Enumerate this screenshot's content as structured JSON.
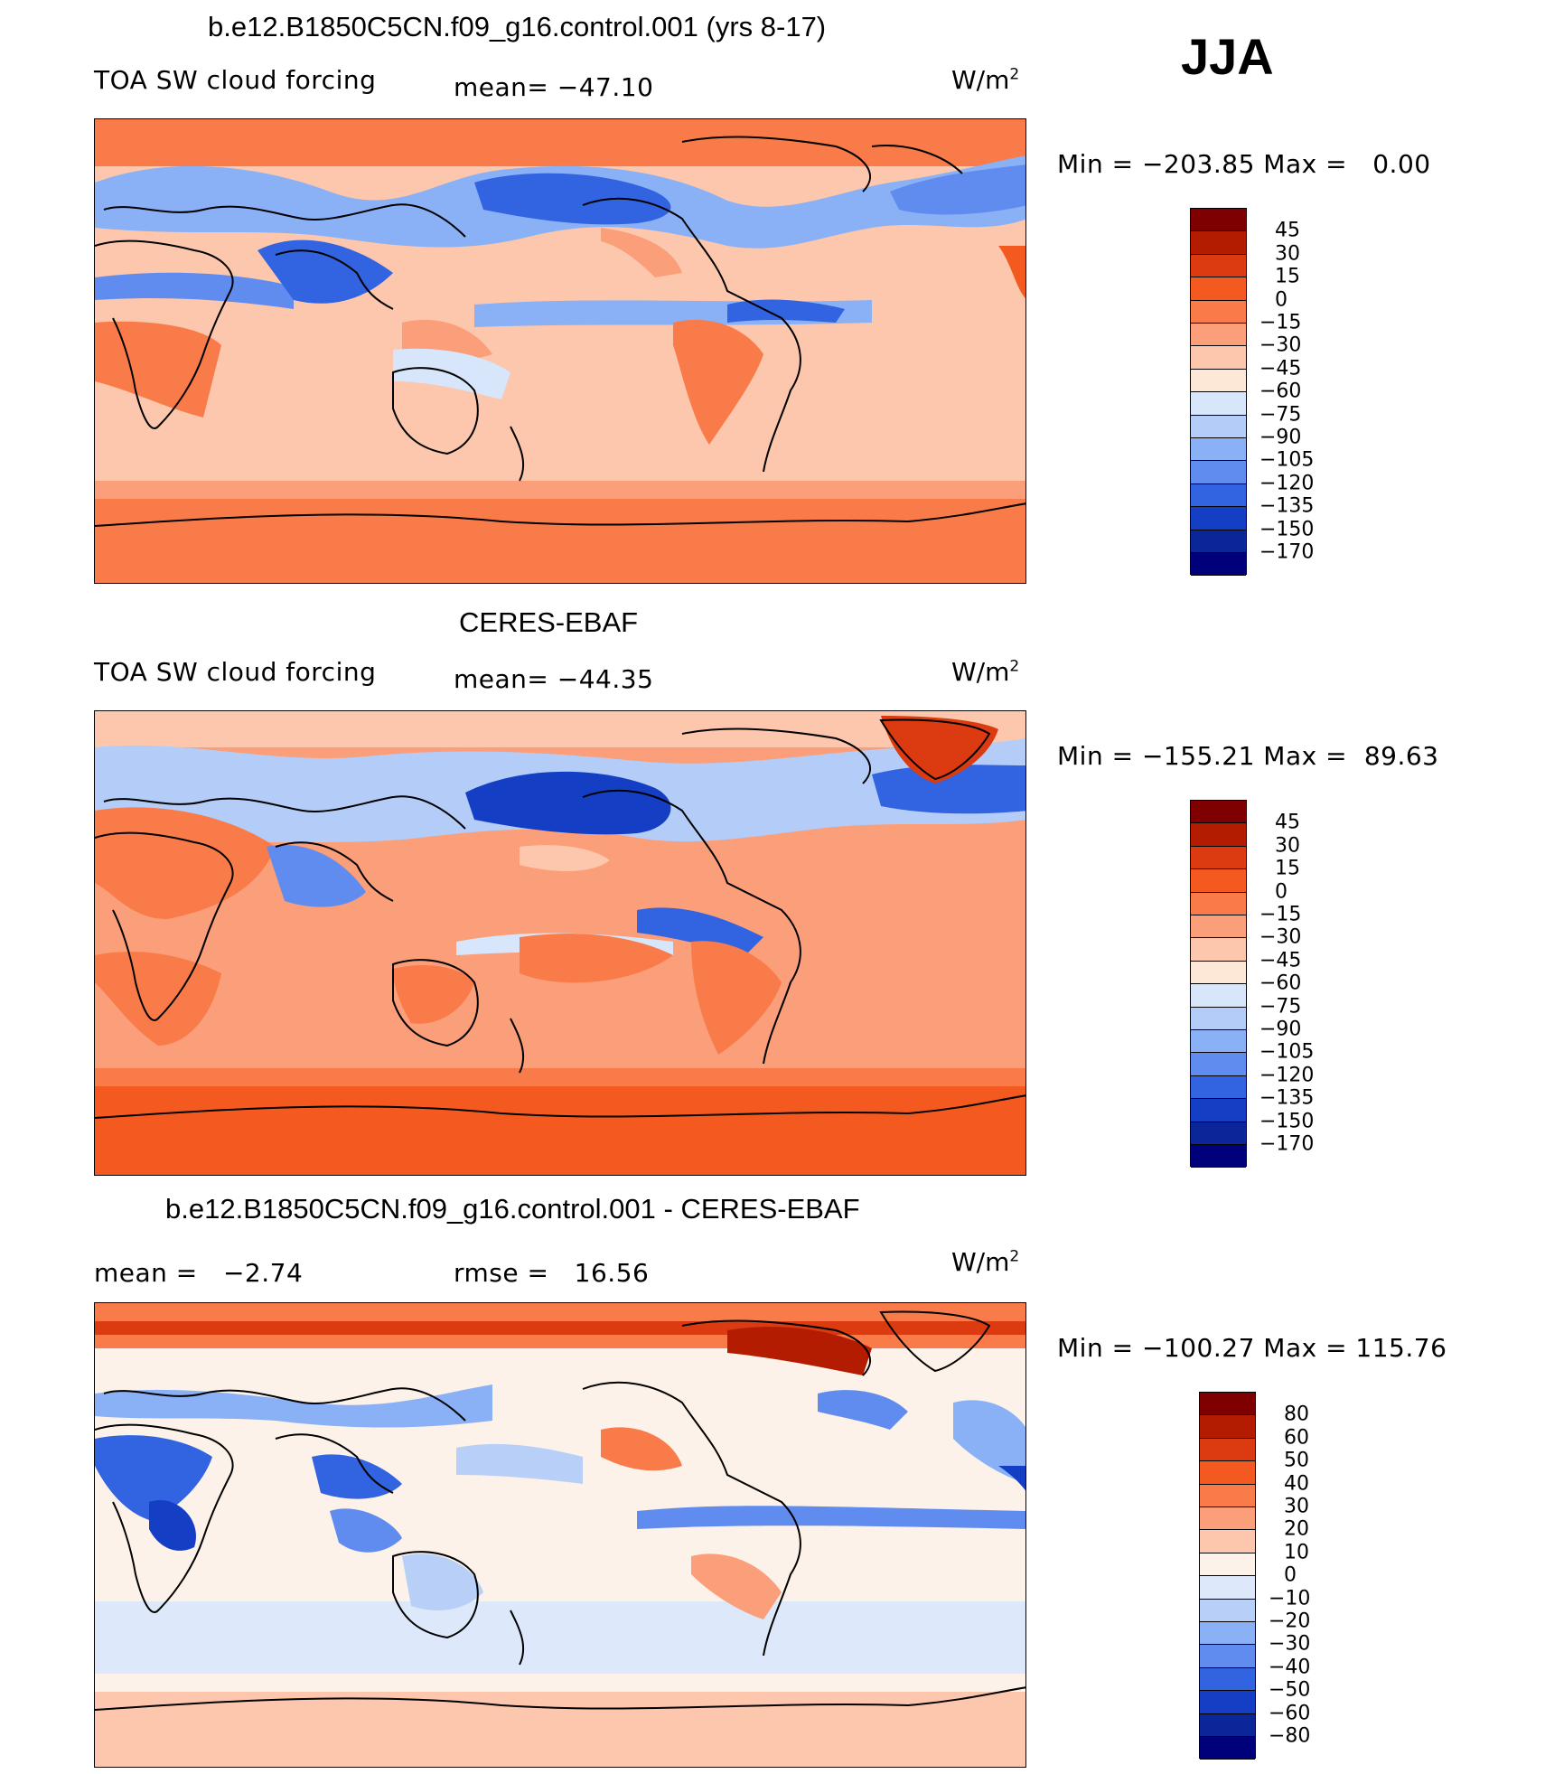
{
  "season": "JJA",
  "panels": [
    {
      "title": "b.e12.B1850C5CN.f09_g16.control.001 (yrs 8-17)",
      "left_label": "TOA SW cloud forcing",
      "stat_label": "mean= −47.10",
      "units": "W/m",
      "units_exp": "2",
      "minmax": "Min = −203.85 Max =   0.00",
      "colorbar": {
        "labels": [
          "45",
          "30",
          "15",
          "0",
          "−15",
          "−30",
          "−45",
          "−60",
          "−75",
          "−90",
          "−105",
          "−120",
          "−135",
          "−150",
          "−170"
        ],
        "colors": [
          "#7f0000",
          "#b31c00",
          "#dc3a10",
          "#f4591f",
          "#f97b4a",
          "#fb9f7a",
          "#fcc7ad",
          "#fde8d8",
          "#d7e6fb",
          "#b3cdf8",
          "#8ab1f5",
          "#5f8cee",
          "#3263e0",
          "#143fc4",
          "#0a2699",
          "#00007a"
        ]
      }
    },
    {
      "title": "CERES-EBAF",
      "left_label": "TOA SW cloud forcing",
      "stat_label": "mean= −44.35",
      "units": "W/m",
      "units_exp": "2",
      "minmax": "Min = −155.21 Max =  89.63",
      "colorbar": {
        "labels": [
          "45",
          "30",
          "15",
          "0",
          "−15",
          "−30",
          "−45",
          "−60",
          "−75",
          "−90",
          "−105",
          "−120",
          "−135",
          "−150",
          "−170"
        ],
        "colors": [
          "#7f0000",
          "#b31c00",
          "#dc3a10",
          "#f4591f",
          "#f97b4a",
          "#fb9f7a",
          "#fcc7ad",
          "#fde8d8",
          "#d7e6fb",
          "#b3cdf8",
          "#8ab1f5",
          "#5f8cee",
          "#3263e0",
          "#143fc4",
          "#0a2699",
          "#00007a"
        ]
      }
    },
    {
      "title": "b.e12.B1850C5CN.f09_g16.control.001 - CERES-EBAF",
      "left_label": "mean =   −2.74",
      "stat_label": "rmse =   16.56",
      "units": "W/m",
      "units_exp": "2",
      "minmax": "Min = −100.27 Max = 115.76",
      "colorbar": {
        "labels": [
          "80",
          "60",
          "50",
          "40",
          "30",
          "20",
          "10",
          "0",
          "−10",
          "−20",
          "−30",
          "−40",
          "−50",
          "−60",
          "−80"
        ],
        "colors": [
          "#7f0000",
          "#b31c00",
          "#dc3a10",
          "#f4591f",
          "#f97b4a",
          "#fb9f7a",
          "#fcc7ad",
          "#fdf2e9",
          "#dde9fb",
          "#b8d0f8",
          "#8ab1f5",
          "#5f8cee",
          "#3263e0",
          "#143fc4",
          "#0a2699",
          "#00007a"
        ]
      }
    }
  ]
}
